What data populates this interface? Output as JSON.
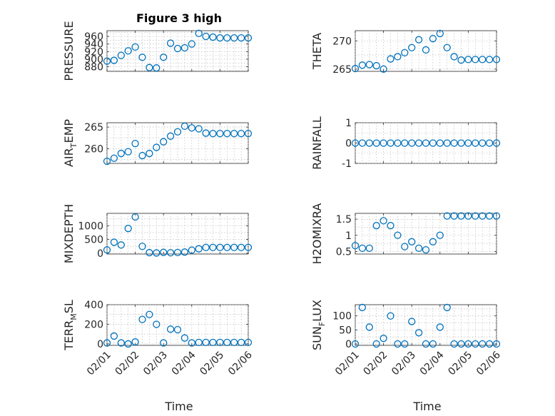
{
  "figure": {
    "title": "Figure 3 high",
    "xlabel": "Time"
  },
  "chart_data": [
    {
      "type": "scatter",
      "ylabel": "PRESSURE",
      "ylim": [
        868,
        975
      ],
      "yticks": [
        880,
        900,
        920,
        940,
        960
      ],
      "ytick_labels": [
        "880",
        "900",
        "920",
        "940",
        "960"
      ],
      "x": [
        0,
        0.25,
        0.5,
        0.75,
        1,
        1.25,
        1.5,
        1.75,
        2,
        2.25,
        2.5,
        2.75,
        3,
        3.25,
        3.5,
        3.75,
        4,
        4.25,
        4.5,
        4.75,
        5
      ],
      "y": [
        895,
        897,
        910,
        922,
        932,
        905,
        878,
        877,
        905,
        942,
        928,
        930,
        940,
        968,
        960,
        958,
        956,
        956,
        956,
        956,
        956
      ]
    },
    {
      "type": "scatter",
      "ylabel": "THETA",
      "ylim": [
        264.6,
        271.8
      ],
      "yticks": [
        265,
        270
      ],
      "ytick_labels": [
        "265",
        "270"
      ],
      "x": [
        0,
        0.25,
        0.5,
        0.75,
        1,
        1.25,
        1.5,
        1.75,
        2,
        2.25,
        2.5,
        2.75,
        3,
        3.25,
        3.5,
        3.75,
        4,
        4.25,
        4.5,
        4.75,
        5
      ],
      "y": [
        265.1,
        265.7,
        265.8,
        265.6,
        265.0,
        266.8,
        267.2,
        267.9,
        268.8,
        270.2,
        268.4,
        270.4,
        271.3,
        268.8,
        267.2,
        266.6,
        266.7,
        266.7,
        266.7,
        266.7,
        266.7
      ]
    },
    {
      "type": "scatter",
      "ylabel": "AIR_TEMP",
      "ylim": [
        256.6,
        266
      ],
      "yticks": [
        260,
        265
      ],
      "ytick_labels": [
        "260",
        "265"
      ],
      "x": [
        0,
        0.25,
        0.5,
        0.75,
        1,
        1.25,
        1.5,
        1.75,
        2,
        2.25,
        2.5,
        2.75,
        3,
        3.25,
        3.5,
        3.75,
        4,
        4.25,
        4.5,
        4.75,
        5
      ],
      "y": [
        257.1,
        257.8,
        258.9,
        259.3,
        261.2,
        258.4,
        258.9,
        260.3,
        261.6,
        262.9,
        263.9,
        265.2,
        264.8,
        264.6,
        263.6,
        263.5,
        263.5,
        263.5,
        263.5,
        263.5,
        263.5
      ]
    },
    {
      "type": "scatter",
      "ylabel": "RAINFALL",
      "ylim": [
        -1,
        1
      ],
      "yticks": [
        -1,
        0,
        1
      ],
      "ytick_labels": [
        "-1",
        "0",
        "1"
      ],
      "x": [
        0,
        0.25,
        0.5,
        0.75,
        1,
        1.25,
        1.5,
        1.75,
        2,
        2.25,
        2.5,
        2.75,
        3,
        3.25,
        3.5,
        3.75,
        4,
        4.25,
        4.5,
        4.75,
        5
      ],
      "y": [
        0,
        0,
        0,
        0,
        0,
        0,
        0,
        0,
        0,
        0,
        0,
        0,
        0,
        0,
        0,
        0,
        0,
        0,
        0,
        0,
        0
      ]
    },
    {
      "type": "scatter",
      "ylabel": "MIXDEPTH",
      "ylim": [
        -30,
        1450
      ],
      "yticks": [
        0,
        500,
        1000
      ],
      "ytick_labels": [
        "0",
        "500",
        "1000"
      ],
      "x": [
        0,
        0.25,
        0.5,
        0.75,
        1,
        1.25,
        1.5,
        1.75,
        2,
        2.25,
        2.5,
        2.75,
        3,
        3.25,
        3.5,
        3.75,
        4,
        4.25,
        4.5,
        4.75,
        5
      ],
      "y": [
        120,
        400,
        300,
        900,
        1320,
        250,
        20,
        10,
        30,
        15,
        25,
        40,
        110,
        160,
        210,
        210,
        210,
        210,
        210,
        210,
        210
      ]
    },
    {
      "type": "scatter",
      "ylabel": "H2OMIXRA",
      "ylim": [
        0.42,
        1.68
      ],
      "yticks": [
        0.5,
        1,
        1.5
      ],
      "ytick_labels": [
        "0.5",
        "1",
        "1.5"
      ],
      "x": [
        0,
        0.25,
        0.5,
        0.75,
        1,
        1.25,
        1.5,
        1.75,
        2,
        2.25,
        2.5,
        2.75,
        3,
        3.25,
        3.5,
        3.75,
        4,
        4.25,
        4.5,
        4.75,
        5
      ],
      "y": [
        0.68,
        0.6,
        0.6,
        1.3,
        1.45,
        1.3,
        1.0,
        0.65,
        0.8,
        0.6,
        0.55,
        0.8,
        1.0,
        1.6,
        1.6,
        1.6,
        1.6,
        1.6,
        1.6,
        1.6,
        1.6
      ]
    },
    {
      "type": "scatter",
      "ylabel": "TERR_MSL",
      "ylim": [
        -15,
        400
      ],
      "yticks": [
        0,
        200,
        400
      ],
      "ytick_labels": [
        "0",
        "200",
        "400"
      ],
      "x": [
        0,
        0.25,
        0.5,
        0.75,
        1,
        1.25,
        1.5,
        1.75,
        2,
        2.25,
        2.5,
        2.75,
        3,
        3.25,
        3.5,
        3.75,
        4,
        4.25,
        4.5,
        4.75,
        5
      ],
      "y": [
        10,
        80,
        10,
        0,
        20,
        250,
        300,
        200,
        10,
        150,
        145,
        60,
        10,
        15,
        15,
        15,
        15,
        15,
        15,
        15,
        15
      ]
    },
    {
      "type": "scatter",
      "ylabel": "SUN_FLUX",
      "ylim": [
        -5,
        140
      ],
      "yticks": [
        0,
        50,
        100
      ],
      "ytick_labels": [
        "0",
        "50",
        "100"
      ],
      "x": [
        0,
        0.25,
        0.5,
        0.75,
        1,
        1.25,
        1.5,
        1.75,
        2,
        2.25,
        2.5,
        2.75,
        3,
        3.25,
        3.5,
        3.75,
        4,
        4.25,
        4.5,
        4.75,
        5
      ],
      "y": [
        0,
        130,
        60,
        0,
        20,
        100,
        0,
        0,
        80,
        40,
        0,
        0,
        60,
        130,
        0,
        0,
        0,
        0,
        0,
        0,
        0
      ]
    }
  ],
  "x_axis": {
    "xlim": [
      0,
      5
    ],
    "ticks": [
      0,
      1,
      2,
      3,
      4,
      5
    ],
    "tick_labels": [
      "02/01",
      "02/02",
      "02/03",
      "02/04",
      "02/05",
      "02/06"
    ]
  }
}
